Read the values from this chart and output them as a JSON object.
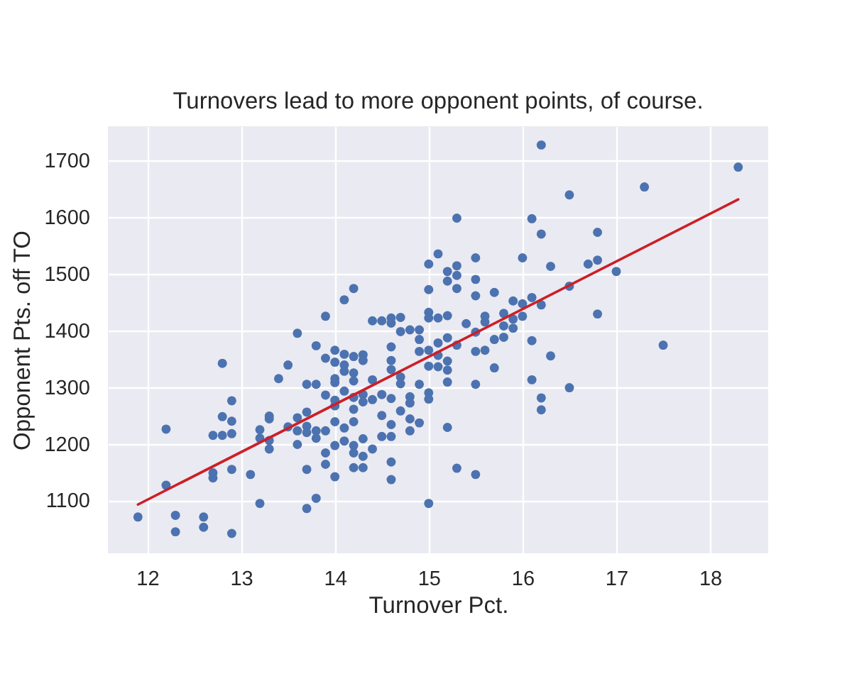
{
  "chart_data": {
    "type": "scatter",
    "title": "Turnovers lead to more opponent points, of course.",
    "xlabel": "Turnover Pct.",
    "ylabel": "Opponent Pts. off TO",
    "xlim": [
      11.58,
      18.62
    ],
    "ylim": [
      1008,
      1761
    ],
    "xticks": [
      12,
      13,
      14,
      15,
      16,
      17,
      18
    ],
    "yticks": [
      1100,
      1200,
      1300,
      1400,
      1500,
      1600,
      1700
    ],
    "grid": true,
    "series": [
      {
        "color": "#4c72b0",
        "marker": "circle",
        "x": [
          11.9,
          12.2,
          12.2,
          12.3,
          12.3,
          12.6,
          12.6,
          12.7,
          12.7,
          12.7,
          12.8,
          12.8,
          12.8,
          12.9,
          12.9,
          12.9,
          12.9,
          12.9,
          13.1,
          13.2,
          13.2,
          13.2,
          13.3,
          13.3,
          13.3,
          13.3,
          13.4,
          13.5,
          13.5,
          13.6,
          13.6,
          13.6,
          13.6,
          13.7,
          13.7,
          13.7,
          13.7,
          13.7,
          13.7,
          13.8,
          13.8,
          13.8,
          13.8,
          13.8,
          13.9,
          13.9,
          13.9,
          13.9,
          13.9,
          13.9,
          14,
          14,
          14,
          14,
          14,
          14,
          14,
          14,
          14,
          14.1,
          14.1,
          14.1,
          14.1,
          14.1,
          14.1,
          14.1,
          14.2,
          14.2,
          14.2,
          14.2,
          14.2,
          14.2,
          14.2,
          14.2,
          14.2,
          14.2,
          14.3,
          14.3,
          14.3,
          14.3,
          14.3,
          14.3,
          14.3,
          14.4,
          14.4,
          14.4,
          14.4,
          14.5,
          14.5,
          14.5,
          14.5,
          14.6,
          14.6,
          14.6,
          14.6,
          14.6,
          14.6,
          14.6,
          14.6,
          14.6,
          14.6,
          14.7,
          14.7,
          14.7,
          14.7,
          14.7,
          14.8,
          14.8,
          14.8,
          14.8,
          14.8,
          14.9,
          14.9,
          14.9,
          14.9,
          14.9,
          15,
          15,
          15,
          15,
          15,
          15,
          15,
          15,
          15,
          15.1,
          15.1,
          15.1,
          15.1,
          15.1,
          15.2,
          15.2,
          15.2,
          15.2,
          15.2,
          15.2,
          15.2,
          15.2,
          15.3,
          15.3,
          15.3,
          15.3,
          15.3,
          15.3,
          15.4,
          15.5,
          15.5,
          15.5,
          15.5,
          15.5,
          15.5,
          15.5,
          15.6,
          15.6,
          15.6,
          15.7,
          15.7,
          15.7,
          15.8,
          15.8,
          15.8,
          15.9,
          15.9,
          15.9,
          16,
          16,
          16,
          16.1,
          16.1,
          16.1,
          16.1,
          16.2,
          16.2,
          16.2,
          16.2,
          16.2,
          16.3,
          16.3,
          16.5,
          16.5,
          16.5,
          16.7,
          16.8,
          16.8,
          16.8,
          17,
          17.3,
          17.5,
          18.3
        ],
        "values": [
          1072,
          1227,
          1128,
          1075,
          1046,
          1072,
          1054,
          1216,
          1150,
          1141,
          1343,
          1249,
          1216,
          1277,
          1241,
          1219,
          1156,
          1043,
          1147,
          1226,
          1211,
          1096,
          1250,
          1245,
          1207,
          1192,
          1316,
          1340,
          1231,
          1396,
          1247,
          1224,
          1200,
          1306,
          1257,
          1232,
          1221,
          1156,
          1087,
          1374,
          1306,
          1224,
          1211,
          1105,
          1426,
          1352,
          1287,
          1224,
          1185,
          1165,
          1366,
          1345,
          1316,
          1309,
          1278,
          1268,
          1240,
          1198,
          1143,
          1455,
          1359,
          1340,
          1329,
          1294,
          1229,
          1206,
          1475,
          1355,
          1326,
          1312,
          1283,
          1262,
          1240,
          1198,
          1185,
          1159,
          1358,
          1348,
          1288,
          1275,
          1210,
          1179,
          1159,
          1418,
          1314,
          1279,
          1192,
          1418,
          1288,
          1251,
          1214,
          1423,
          1414,
          1372,
          1348,
          1332,
          1281,
          1235,
          1214,
          1169,
          1138,
          1424,
          1399,
          1319,
          1307,
          1259,
          1402,
          1284,
          1273,
          1245,
          1224,
          1402,
          1385,
          1364,
          1306,
          1238,
          1518,
          1473,
          1433,
          1423,
          1366,
          1338,
          1291,
          1280,
          1096,
          1536,
          1423,
          1379,
          1357,
          1337,
          1505,
          1488,
          1427,
          1388,
          1347,
          1331,
          1310,
          1230,
          1599,
          1515,
          1498,
          1475,
          1375,
          1158,
          1413,
          1529,
          1491,
          1462,
          1398,
          1364,
          1306,
          1147,
          1426,
          1416,
          1366,
          1468,
          1385,
          1335,
          1431,
          1409,
          1389,
          1453,
          1421,
          1405,
          1529,
          1448,
          1426,
          1598,
          1459,
          1383,
          1314,
          1728,
          1571,
          1446,
          1282,
          1261,
          1514,
          1356,
          1640,
          1479,
          1300,
          1518,
          1574,
          1525,
          1430,
          1505,
          1654,
          1375,
          1689
        ]
      },
      {
        "type": "line",
        "color": "#cc1f27",
        "x": [
          11.9,
          18.3
        ],
        "values": [
          1094,
          1632
        ]
      }
    ]
  }
}
